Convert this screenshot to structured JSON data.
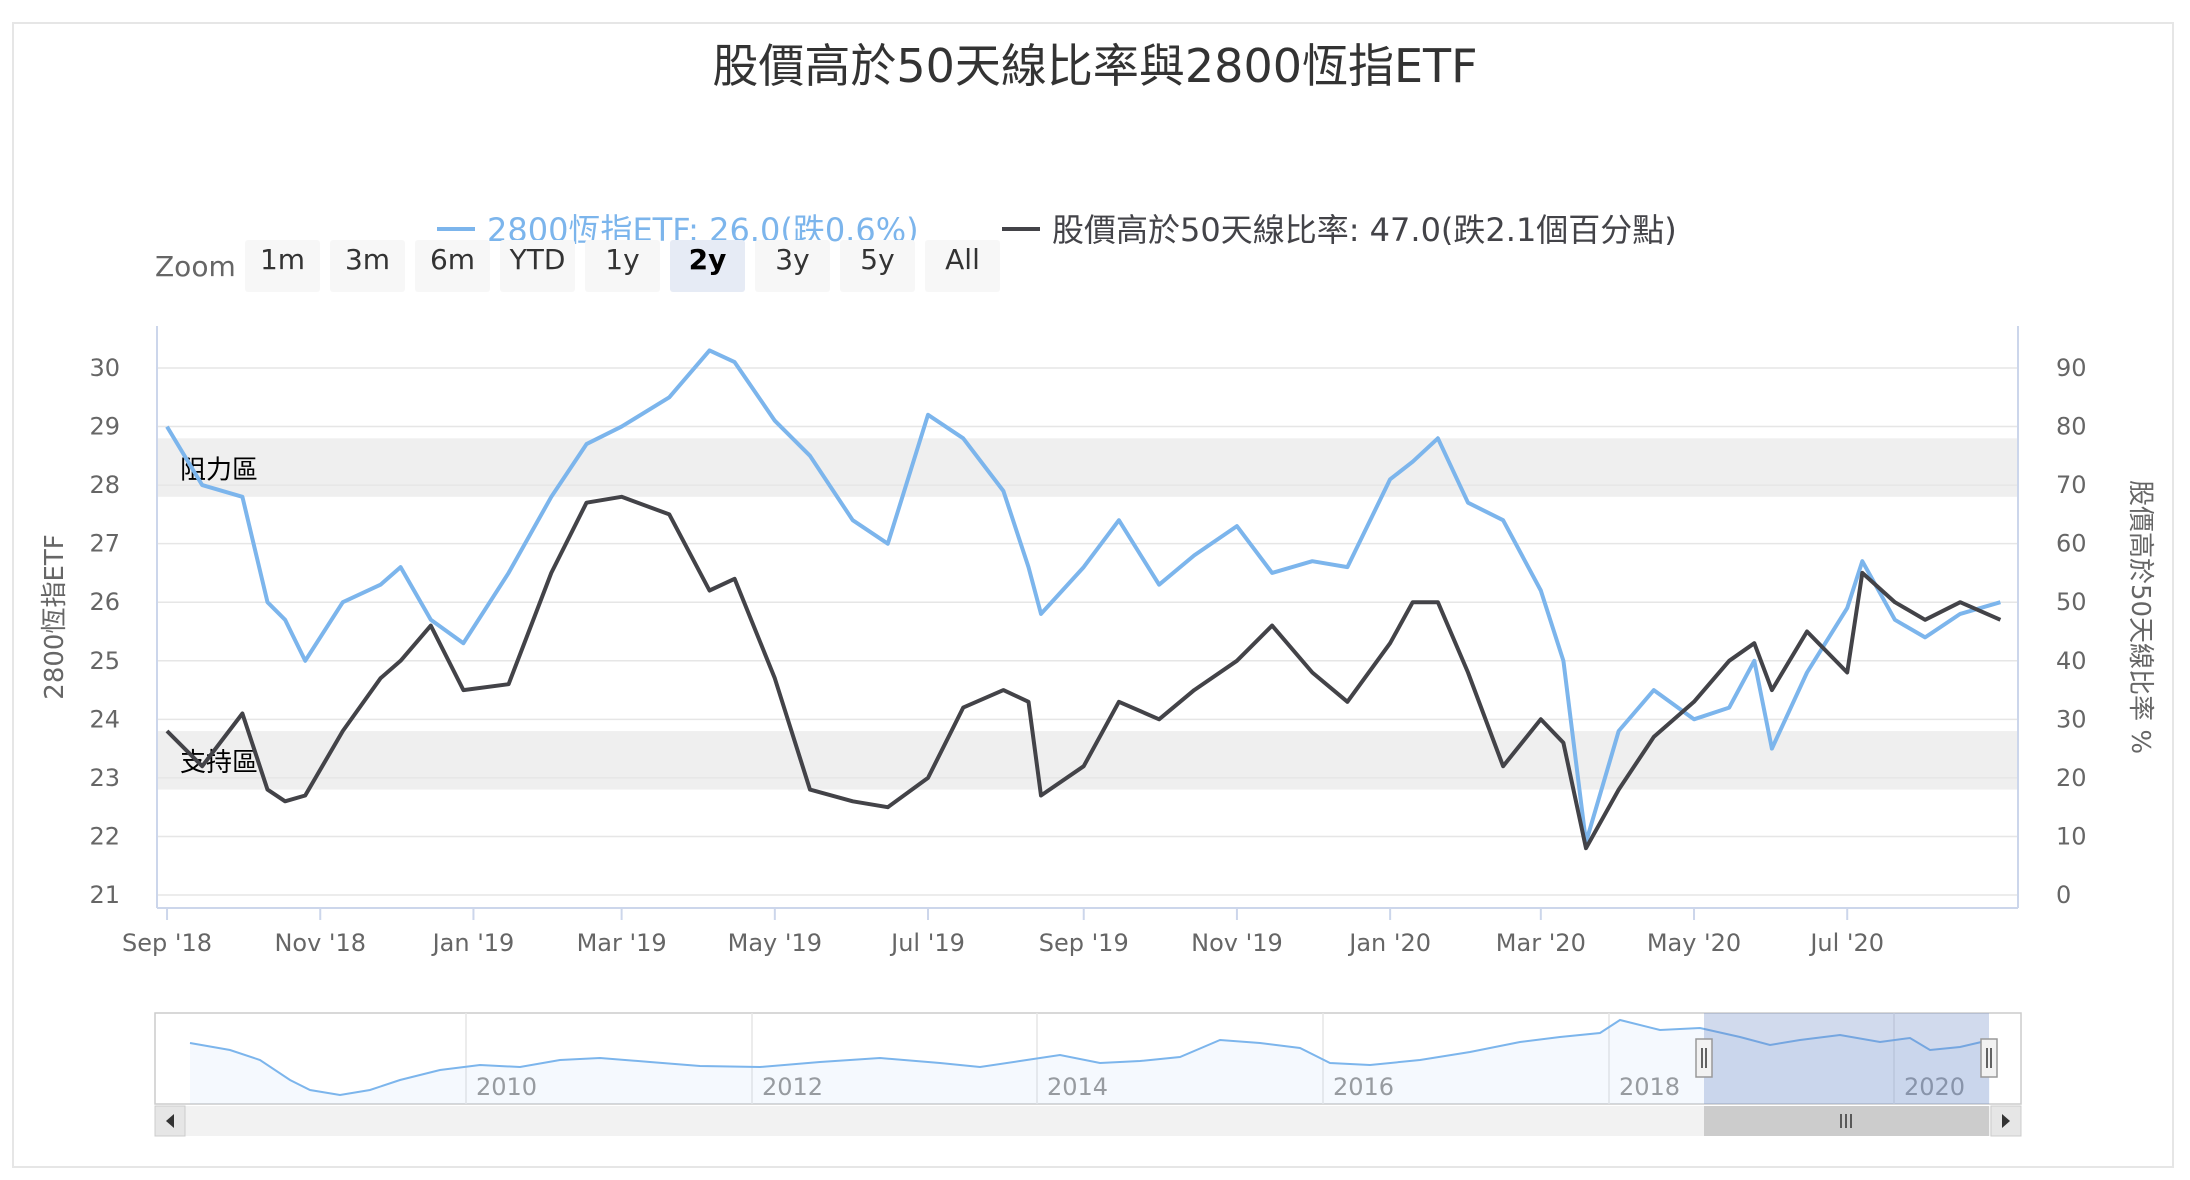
{
  "title": "股價高於50天線比率與2800恆指ETF",
  "colors": {
    "etf": "#7cb5ec",
    "ratio": "#434348",
    "band": "#efefef",
    "navigator_mask": "#6685c2"
  },
  "legend": [
    {
      "name": "2800恆指ETF",
      "label": "2800恆指ETF: 26.0(跌0.6%)",
      "color": "#7cb5ec"
    },
    {
      "name": "股價高於50天線比率",
      "label": "股價高於50天線比率: 47.0(跌2.1個百分點)",
      "color": "#434348"
    }
  ],
  "range_selector": {
    "label": "Zoom",
    "buttons": [
      "1m",
      "3m",
      "6m",
      "YTD",
      "1y",
      "2y",
      "3y",
      "5y",
      "All"
    ],
    "selected": "2y"
  },
  "chart_data": {
    "type": "line",
    "title": "股價高於50天線比率與2800恆指ETF",
    "x_range": [
      "2018-09",
      "2020-09"
    ],
    "x_ticks": [
      "Sep '18",
      "Nov '18",
      "Jan '19",
      "Mar '19",
      "May '19",
      "Jul '19",
      "Sep '19",
      "Nov '19",
      "Jan '20",
      "Mar '20",
      "May '20",
      "Jul '20"
    ],
    "left_axis": {
      "title": "2800恆指ETF",
      "ylim": [
        21,
        30
      ],
      "ticks": [
        21,
        22,
        23,
        24,
        25,
        26,
        27,
        28,
        29,
        30
      ]
    },
    "right_axis": {
      "title": "股價高於50天線比率 %",
      "ylim": [
        0,
        90
      ],
      "ticks": [
        0,
        10,
        20,
        30,
        40,
        50,
        60,
        70,
        80,
        90
      ]
    },
    "plot_bands": [
      {
        "label": "阻力區",
        "axis": "left",
        "from": 27.8,
        "to": 28.8
      },
      {
        "label": "支持區",
        "axis": "left",
        "from": 22.8,
        "to": 23.8
      }
    ],
    "grid": true,
    "series": [
      {
        "name": "2800恆指ETF",
        "axis": "left",
        "x": [
          "2018-09-01",
          "2018-09-15",
          "2018-10-01",
          "2018-10-11",
          "2018-10-18",
          "2018-10-26",
          "2018-11-10",
          "2018-11-25",
          "2018-12-03",
          "2018-12-15",
          "2018-12-28",
          "2019-01-15",
          "2019-02-01",
          "2019-02-15",
          "2019-03-01",
          "2019-03-20",
          "2019-04-05",
          "2019-04-15",
          "2019-05-01",
          "2019-05-15",
          "2019-06-01",
          "2019-06-15",
          "2019-07-01",
          "2019-07-15",
          "2019-07-31",
          "2019-08-10",
          "2019-08-15",
          "2019-09-01",
          "2019-09-15",
          "2019-10-01",
          "2019-10-15",
          "2019-11-01",
          "2019-11-15",
          "2019-12-01",
          "2019-12-15",
          "2020-01-01",
          "2020-01-10",
          "2020-01-20",
          "2020-02-01",
          "2020-02-15",
          "2020-03-01",
          "2020-03-10",
          "2020-03-19",
          "2020-04-01",
          "2020-04-15",
          "2020-05-01",
          "2020-05-15",
          "2020-05-25",
          "2020-06-01",
          "2020-06-15",
          "2020-07-01",
          "2020-07-07",
          "2020-07-20",
          "2020-08-01",
          "2020-08-15",
          "2020-08-31"
        ],
        "values": [
          29.0,
          28.0,
          27.8,
          26.0,
          25.7,
          25.0,
          26.0,
          26.3,
          26.6,
          25.7,
          25.3,
          26.5,
          27.8,
          28.7,
          29.0,
          29.5,
          30.3,
          30.1,
          29.1,
          28.5,
          27.4,
          27.0,
          29.2,
          28.8,
          27.9,
          26.6,
          25.8,
          26.6,
          27.4,
          26.3,
          26.8,
          27.3,
          26.5,
          26.7,
          26.6,
          28.1,
          28.4,
          28.8,
          27.7,
          27.4,
          26.2,
          25.0,
          21.9,
          23.8,
          24.5,
          24.0,
          24.2,
          25.0,
          23.5,
          24.8,
          25.9,
          26.7,
          25.7,
          25.4,
          25.8,
          26.0
        ]
      },
      {
        "name": "股價高於50天線比率",
        "axis": "right",
        "x": [
          "2018-09-01",
          "2018-09-15",
          "2018-10-01",
          "2018-10-11",
          "2018-10-18",
          "2018-10-26",
          "2018-11-10",
          "2018-11-25",
          "2018-12-03",
          "2018-12-15",
          "2018-12-28",
          "2019-01-15",
          "2019-02-01",
          "2019-02-15",
          "2019-03-01",
          "2019-03-20",
          "2019-04-05",
          "2019-04-15",
          "2019-05-01",
          "2019-05-15",
          "2019-06-01",
          "2019-06-15",
          "2019-07-01",
          "2019-07-15",
          "2019-07-31",
          "2019-08-10",
          "2019-08-15",
          "2019-09-01",
          "2019-09-15",
          "2019-10-01",
          "2019-10-15",
          "2019-11-01",
          "2019-11-15",
          "2019-12-01",
          "2019-12-15",
          "2020-01-01",
          "2020-01-10",
          "2020-01-20",
          "2020-02-01",
          "2020-02-15",
          "2020-03-01",
          "2020-03-10",
          "2020-03-19",
          "2020-04-01",
          "2020-04-15",
          "2020-05-01",
          "2020-05-15",
          "2020-05-25",
          "2020-06-01",
          "2020-06-15",
          "2020-07-01",
          "2020-07-07",
          "2020-07-20",
          "2020-08-01",
          "2020-08-15",
          "2020-08-31"
        ],
        "values": [
          28,
          22,
          31,
          18,
          16,
          17,
          28,
          37,
          40,
          46,
          35,
          36,
          55,
          67,
          68,
          65,
          52,
          54,
          37,
          18,
          16,
          15,
          20,
          32,
          35,
          33,
          17,
          22,
          33,
          30,
          35,
          40,
          46,
          38,
          33,
          43,
          50,
          50,
          38,
          22,
          30,
          26,
          8,
          18,
          27,
          33,
          40,
          43,
          35,
          45,
          38,
          55,
          50,
          47,
          50,
          47
        ]
      }
    ],
    "navigator": {
      "x_ticks": [
        "2010",
        "2012",
        "2014",
        "2016",
        "2018",
        "2020"
      ],
      "selected_range": [
        "2018-09",
        "2020-09"
      ]
    }
  }
}
